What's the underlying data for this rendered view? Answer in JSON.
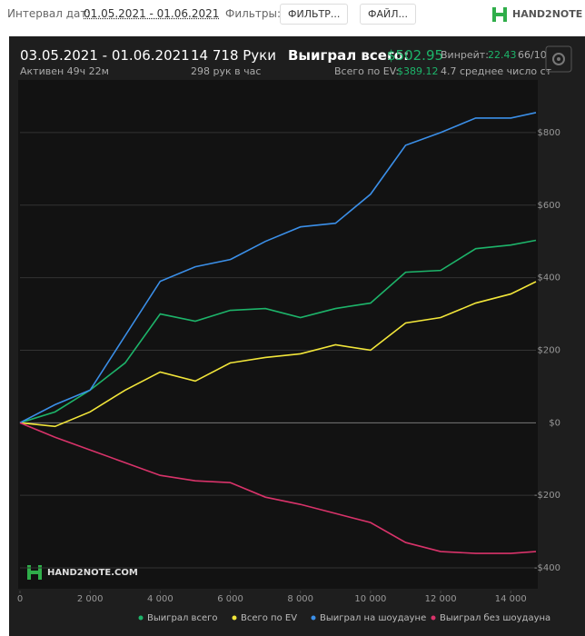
{
  "header": {
    "date_label": "Интервал дат:",
    "date_range": "01.05.2021 - 01.06.2021",
    "filters_label": "Фильтры:",
    "filter_button": "ФИЛЬТР...",
    "file_button": "ФАЙЛ...",
    "logo": "HAND2NOTE"
  },
  "stats": {
    "period": "03.05.2021 - 01.06.2021",
    "active": "Активен 49ч 22м",
    "hands": "14 718 Руки",
    "hands_per_hour": "298 рук в час",
    "won_label": "Выиграл всего:",
    "won_value": "$502.95",
    "ev_label": "Всего по EV:",
    "ev_value": "$389.12",
    "winrate_label": "Винрейт:",
    "winrate_value": "22.43",
    "winrate_extra": "66/10",
    "avg_stack": "4.7 среднее число ст"
  },
  "watermark": "HAND2NOTE.COM",
  "chart_data": {
    "type": "line",
    "x": [
      0,
      1000,
      2000,
      3000,
      4000,
      5000,
      6000,
      7000,
      8000,
      9000,
      10000,
      11000,
      12000,
      13000,
      14000,
      14718
    ],
    "series": [
      {
        "name": "Выиграл всего",
        "color": "#1db46a",
        "values": [
          0,
          30,
          90,
          165,
          300,
          280,
          310,
          315,
          290,
          315,
          330,
          415,
          420,
          480,
          490,
          503
        ]
      },
      {
        "name": "Всего по EV",
        "color": "#f2e63a",
        "values": [
          0,
          -10,
          30,
          90,
          140,
          115,
          165,
          180,
          190,
          215,
          200,
          275,
          290,
          330,
          355,
          389
        ]
      },
      {
        "name": "Выиграл на шоудауне",
        "color": "#3b8fe8",
        "values": [
          0,
          50,
          90,
          240,
          390,
          430,
          450,
          500,
          540,
          550,
          630,
          765,
          800,
          840,
          840,
          855
        ]
      },
      {
        "name": "Выиграл без шоудауна",
        "color": "#d8336a",
        "values": [
          0,
          -40,
          -75,
          -110,
          -145,
          -160,
          -165,
          -205,
          -225,
          -250,
          -275,
          -330,
          -355,
          -360,
          -360,
          -355
        ]
      }
    ],
    "xlim": [
      0,
      14718
    ],
    "ylim": [
      -450,
      940
    ],
    "xticks": [
      0,
      {
        "value": 2000,
        "label": "2 000"
      },
      {
        "value": 4000,
        "label": "4 000"
      },
      {
        "value": 6000,
        "label": "6 000"
      },
      {
        "value": 8000,
        "label": "8 000"
      },
      {
        "value": 10000,
        "label": "10 000"
      },
      {
        "value": 12000,
        "label": "12 000"
      },
      {
        "value": 14000,
        "label": "14 000"
      }
    ],
    "yticks": [
      {
        "value": -400,
        "label": "-$400"
      },
      {
        "value": -200,
        "label": "-$200"
      },
      {
        "value": 0,
        "label": "$0"
      },
      {
        "value": 200,
        "label": "$200"
      },
      {
        "value": 400,
        "label": "$400"
      },
      {
        "value": 600,
        "label": "$600"
      },
      {
        "value": 800,
        "label": "$800"
      }
    ],
    "grid": true
  }
}
